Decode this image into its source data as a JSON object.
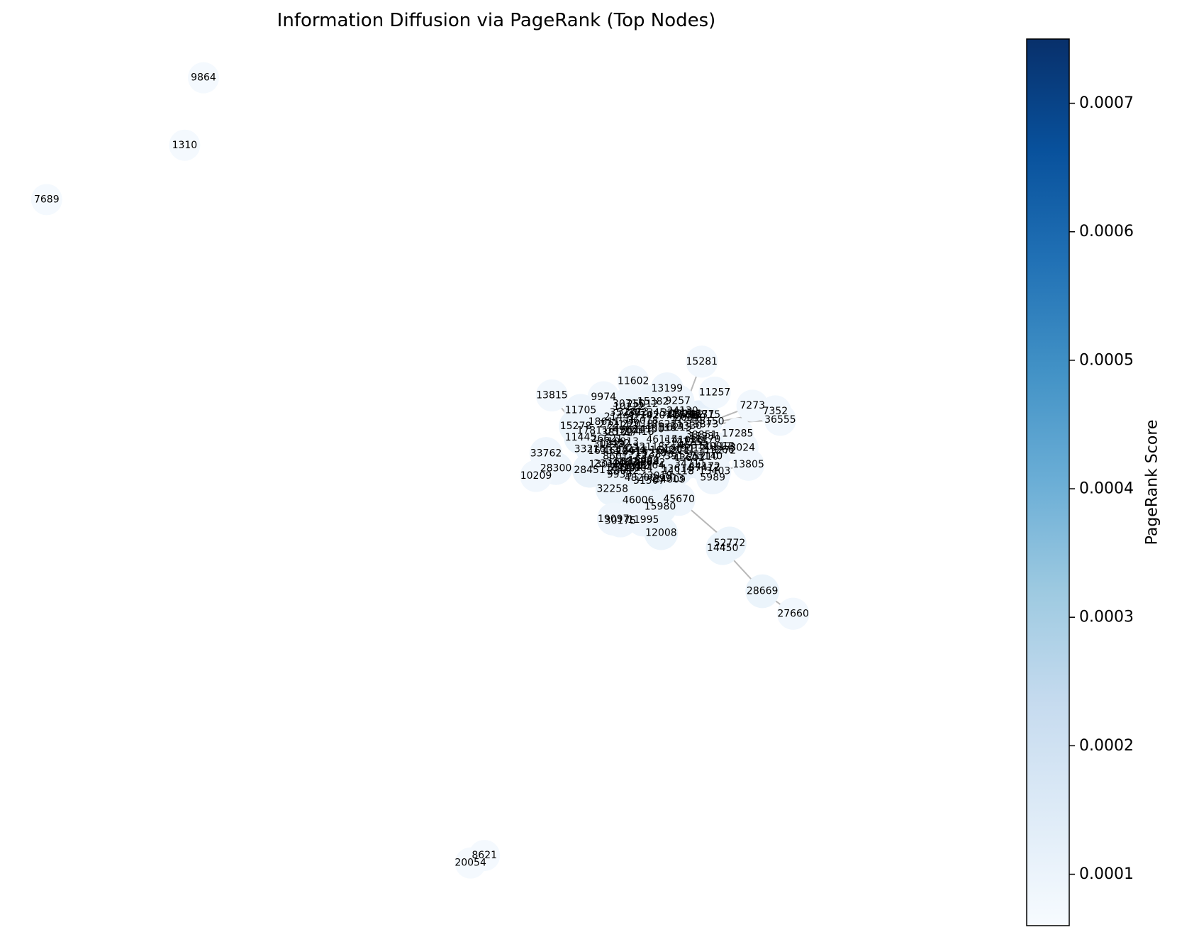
{
  "chart_data": {
    "type": "network",
    "title": "Information Diffusion via PageRank (Top Nodes)",
    "colorbar": {
      "label": "PageRank Score",
      "min": 6e-05,
      "max": 0.00075,
      "ticks": [
        "0.0001",
        "0.0002",
        "0.0003",
        "0.0004",
        "0.0005",
        "0.0006",
        "0.0007"
      ],
      "tick_values": [
        0.0001,
        0.0002,
        0.0003,
        0.0004,
        0.0005,
        0.0006,
        0.0007
      ],
      "colormap": "Blues"
    },
    "nodes": [
      {
        "id": "9864",
        "x": 0.205,
        "y": 0.917,
        "score": 7e-05
      },
      {
        "id": "1310",
        "x": 0.186,
        "y": 0.845,
        "score": 7e-05
      },
      {
        "id": "7689",
        "x": 0.047,
        "y": 0.787,
        "score": 7e-05
      },
      {
        "id": "15281",
        "x": 0.707,
        "y": 0.614,
        "score": 8e-05
      },
      {
        "id": "11602",
        "x": 0.638,
        "y": 0.593,
        "score": 8e-05
      },
      {
        "id": "13199",
        "x": 0.672,
        "y": 0.585,
        "score": 9e-05
      },
      {
        "id": "11257",
        "x": 0.72,
        "y": 0.581,
        "score": 8e-05
      },
      {
        "id": "13815",
        "x": 0.556,
        "y": 0.578,
        "score": 8e-05
      },
      {
        "id": "9974",
        "x": 0.608,
        "y": 0.576,
        "score": 8e-05
      },
      {
        "id": "9257",
        "x": 0.683,
        "y": 0.572,
        "score": 9e-05
      },
      {
        "id": "15382",
        "x": 0.658,
        "y": 0.571,
        "score": 0.0001
      },
      {
        "id": "30715",
        "x": 0.633,
        "y": 0.569,
        "score": 9e-05
      },
      {
        "id": "7273",
        "x": 0.758,
        "y": 0.567,
        "score": 8e-05
      },
      {
        "id": "11705",
        "x": 0.585,
        "y": 0.562,
        "score": 9e-05
      },
      {
        "id": "32813",
        "x": 0.638,
        "y": 0.56,
        "score": 0.0001
      },
      {
        "id": "7352",
        "x": 0.781,
        "y": 0.561,
        "score": 8e-05
      },
      {
        "id": "12782",
        "x": 0.687,
        "y": 0.557,
        "score": 0.0001
      },
      {
        "id": "36555",
        "x": 0.786,
        "y": 0.552,
        "score": 8e-05
      },
      {
        "id": "13873",
        "x": 0.708,
        "y": 0.547,
        "score": 9e-05
      },
      {
        "id": "15278",
        "x": 0.58,
        "y": 0.545,
        "score": 0.0001
      },
      {
        "id": "17285",
        "x": 0.743,
        "y": 0.537,
        "score": 8e-05
      },
      {
        "id": "11445",
        "x": 0.585,
        "y": 0.533,
        "score": 0.0001
      },
      {
        "id": "11770",
        "x": 0.71,
        "y": 0.531,
        "score": 9e-05
      },
      {
        "id": "3024",
        "x": 0.748,
        "y": 0.522,
        "score": 8e-05
      },
      {
        "id": "33762",
        "x": 0.55,
        "y": 0.516,
        "score": 9e-05
      },
      {
        "id": "13805",
        "x": 0.754,
        "y": 0.504,
        "score": 8e-05
      },
      {
        "id": "28300",
        "x": 0.56,
        "y": 0.5,
        "score": 9e-05
      },
      {
        "id": "13403",
        "x": 0.72,
        "y": 0.497,
        "score": 9e-05
      },
      {
        "id": "10209",
        "x": 0.54,
        "y": 0.492,
        "score": 8e-05
      },
      {
        "id": "28451",
        "x": 0.594,
        "y": 0.498,
        "score": 0.00011
      },
      {
        "id": "5989",
        "x": 0.718,
        "y": 0.49,
        "score": 9e-05
      },
      {
        "id": "32258",
        "x": 0.617,
        "y": 0.478,
        "score": 0.0001
      },
      {
        "id": "46006",
        "x": 0.643,
        "y": 0.466,
        "score": 0.0001
      },
      {
        "id": "45670",
        "x": 0.684,
        "y": 0.467,
        "score": 9e-05
      },
      {
        "id": "15980",
        "x": 0.665,
        "y": 0.459,
        "score": 0.0001
      },
      {
        "id": "19097",
        "x": 0.618,
        "y": 0.446,
        "score": 9e-05
      },
      {
        "id": "30175",
        "x": 0.625,
        "y": 0.444,
        "score": 9e-05
      },
      {
        "id": "11995",
        "x": 0.648,
        "y": 0.445,
        "score": 9e-05
      },
      {
        "id": "12008",
        "x": 0.666,
        "y": 0.431,
        "score": 0.0001
      },
      {
        "id": "52772",
        "x": 0.735,
        "y": 0.42,
        "score": 0.0001
      },
      {
        "id": "14450",
        "x": 0.728,
        "y": 0.415,
        "score": 0.0001
      },
      {
        "id": "28669",
        "x": 0.768,
        "y": 0.369,
        "score": 0.0001
      },
      {
        "id": "27660",
        "x": 0.799,
        "y": 0.345,
        "score": 8e-05
      },
      {
        "id": "8621",
        "x": 0.488,
        "y": 0.087,
        "score": 7e-05
      },
      {
        "id": "20054",
        "x": 0.474,
        "y": 0.079,
        "score": 7e-05
      }
    ],
    "edges": [
      [
        "15281",
        "12782"
      ],
      [
        "11257",
        "12782"
      ],
      [
        "7273",
        "13873"
      ],
      [
        "36555",
        "13873"
      ],
      [
        "7352",
        "13873"
      ],
      [
        "17285",
        "11770"
      ],
      [
        "3024",
        "11770"
      ],
      [
        "13805",
        "13403"
      ],
      [
        "13815",
        "15278"
      ],
      [
        "10209",
        "28300"
      ],
      [
        "45670",
        "52772"
      ],
      [
        "14450",
        "28669"
      ],
      [
        "28669",
        "27660"
      ],
      [
        "8621",
        "20054"
      ],
      [
        "12008",
        "15980"
      ]
    ],
    "background_labels": [
      "12315",
      "13010",
      "13882",
      "13873",
      "14616",
      "15278",
      "15299",
      "16215",
      "17233",
      "18117",
      "19011",
      "19272",
      "21441",
      "22164",
      "23311",
      "23914",
      "24150",
      "25012",
      "26177",
      "27211",
      "28042",
      "29101",
      "29913",
      "31004",
      "31266",
      "32017",
      "33140",
      "34009",
      "35280",
      "36221",
      "37412",
      "38851",
      "40118",
      "41036",
      "42255",
      "43019",
      "44172",
      "45311",
      "46224",
      "47102",
      "48200",
      "49031",
      "50117",
      "51212",
      "11231",
      "11312",
      "12422",
      "13145",
      "14012",
      "15150",
      "16333",
      "17510",
      "18611",
      "20013",
      "21222",
      "22345",
      "24130",
      "26007",
      "27418",
      "30311",
      "31507",
      "33216",
      "34711",
      "36018",
      "38102",
      "39127",
      "41519",
      "43603",
      "44829",
      "46115",
      "8601",
      "9012",
      "9930",
      "10222",
      "10913",
      "11118",
      "12614",
      "13330",
      "14707",
      "16421",
      "17811",
      "18922",
      "20340",
      "22019",
      "23210",
      "25117",
      "26621",
      "28812",
      "30029",
      "32118"
    ]
  }
}
